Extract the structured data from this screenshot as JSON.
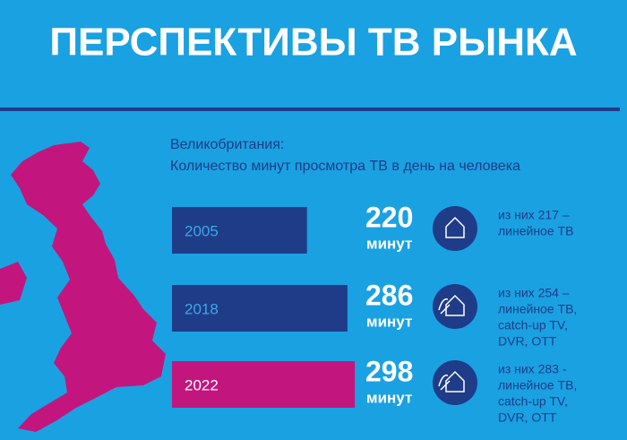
{
  "chart_data": {
    "type": "bar",
    "title": "ПЕРСПЕКТИВЫ ТВ РЫНКА",
    "subtitle": [
      "Великобритания:",
      "Количество минут просмотра ТВ в день на человека"
    ],
    "categories": [
      "2005",
      "2018",
      "2022"
    ],
    "values": [
      220,
      286,
      298
    ],
    "unit": "минут",
    "colors": [
      "#1f3c88",
      "#1f3c88",
      "#c2167e"
    ],
    "notes": [
      [
        "из них 217 –",
        "линейное ТВ"
      ],
      [
        "из них 254 –",
        "линейное ТВ,",
        "catch-up TV,",
        "DVR, OTT"
      ],
      [
        "из них 283 -",
        "линейное ТВ,",
        "catch-up TV,",
        "DVR, OTT"
      ]
    ]
  }
}
